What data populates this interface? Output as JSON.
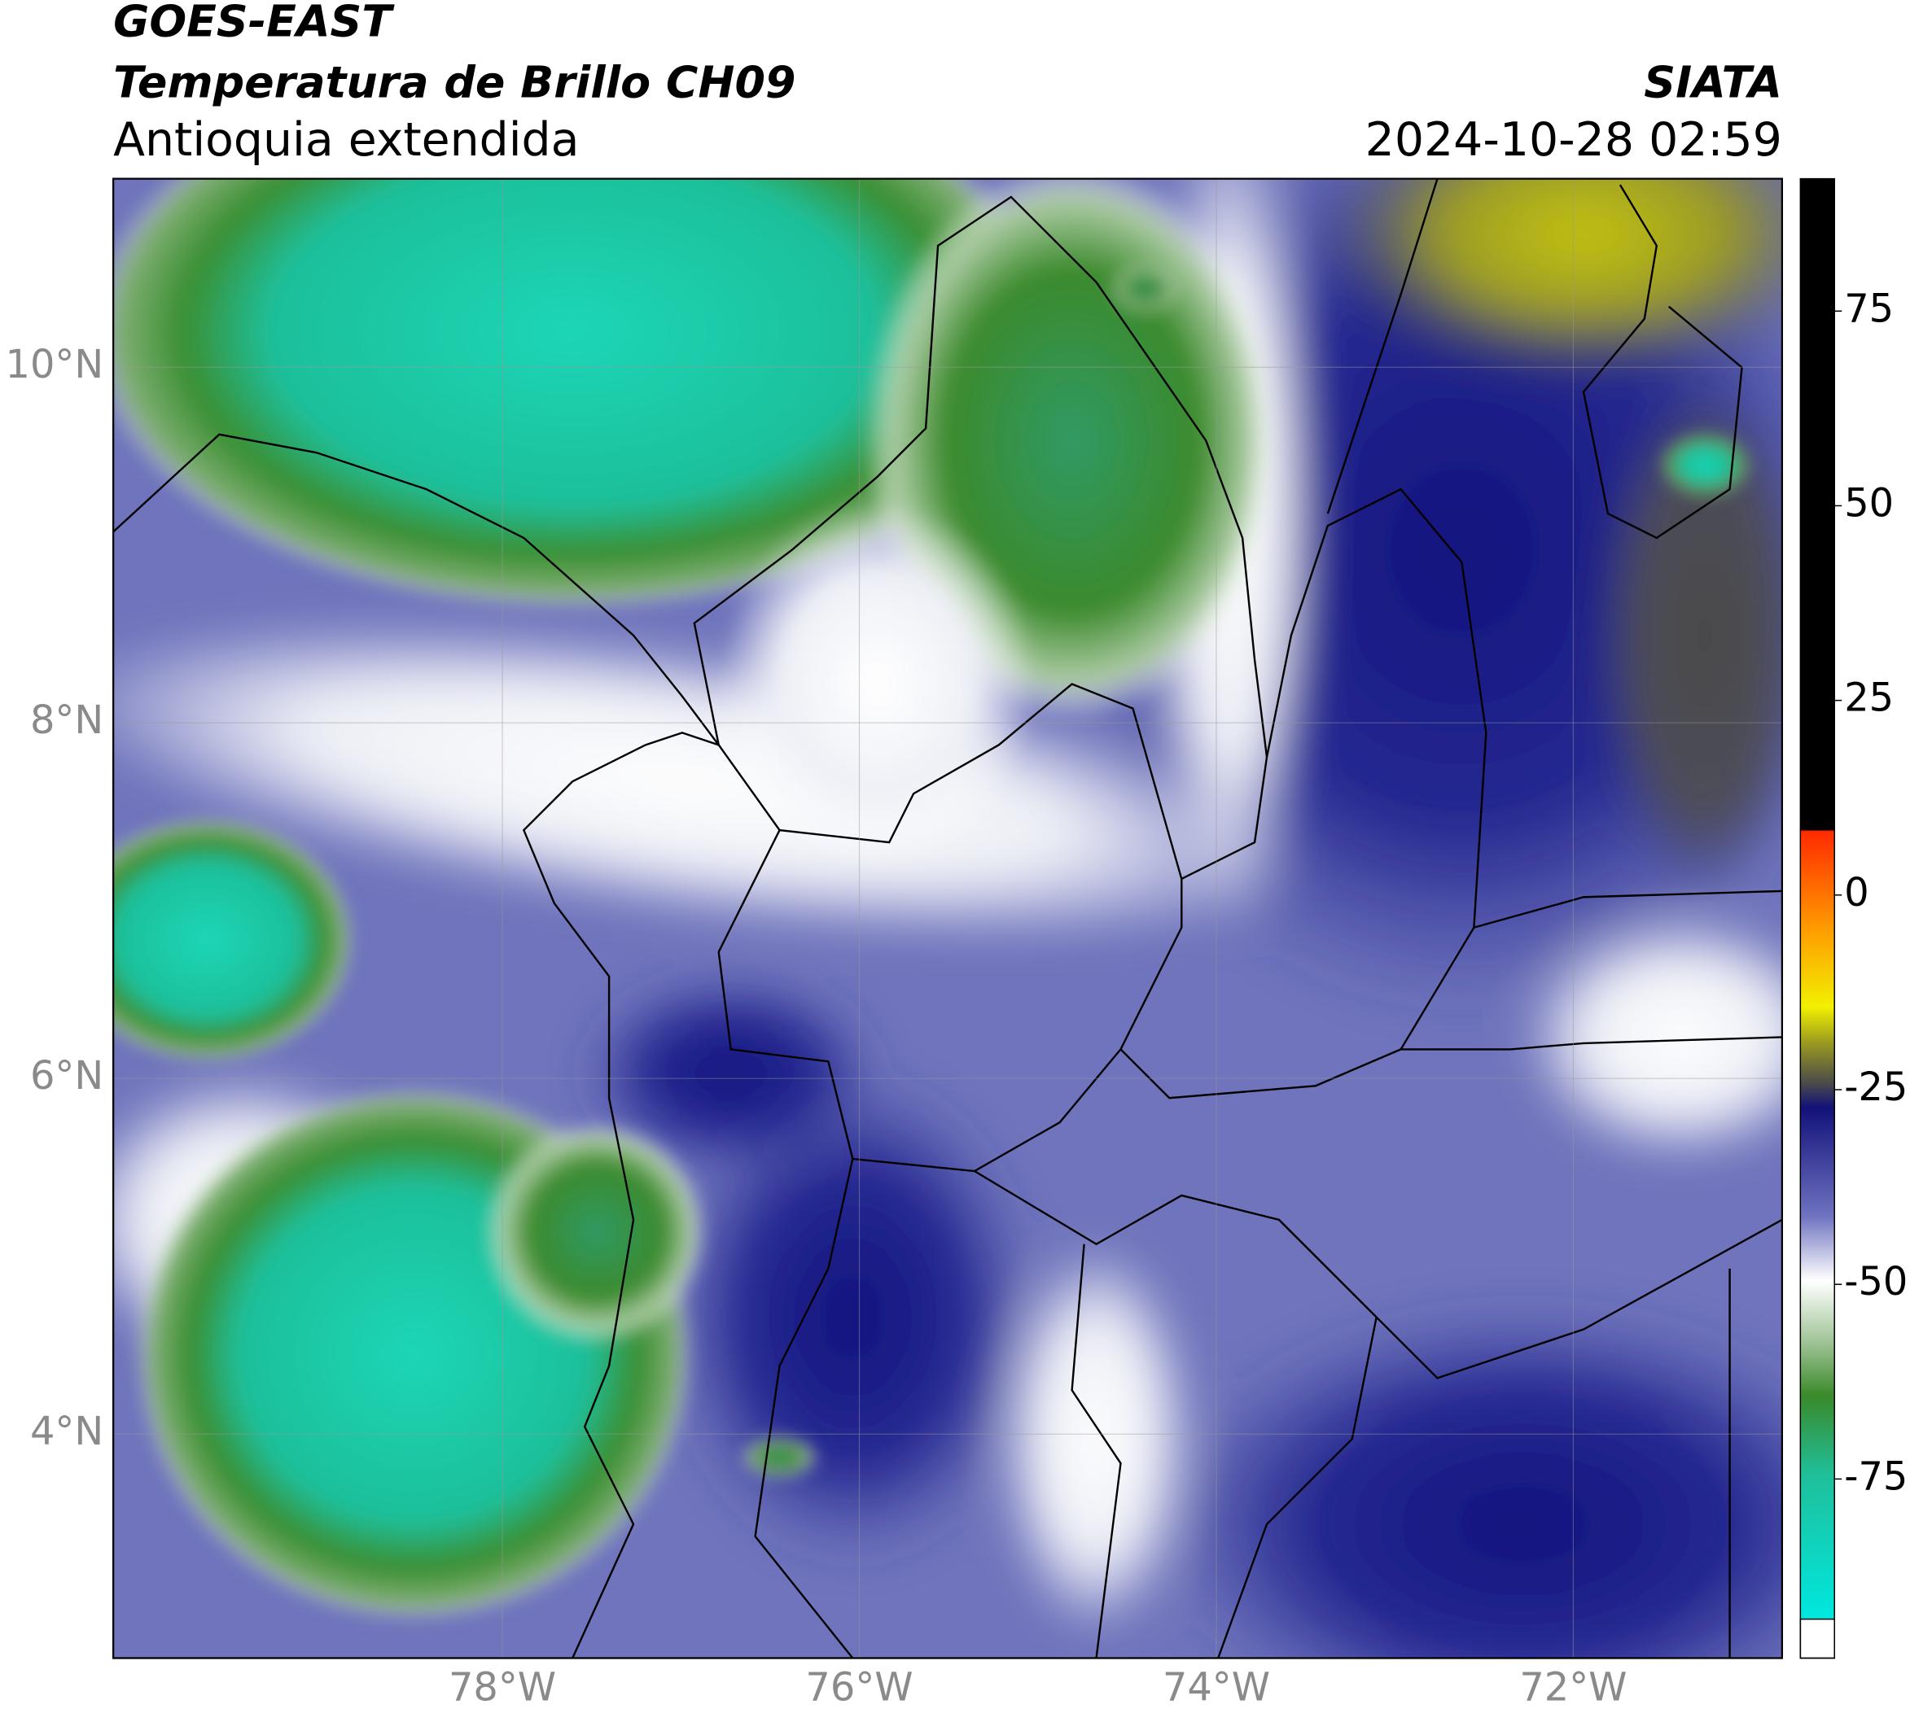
{
  "header": {
    "source": "GOES-EAST",
    "title": "Temperatura de Brillo CH09",
    "region": "Antioquia extendida",
    "organization": "SIATA",
    "datetime": "2024-10-28 02:59"
  },
  "map": {
    "xlim": [
      -80.18,
      -70.83
    ],
    "ylim": [
      2.74,
      11.06
    ],
    "xticks": [
      {
        "value": -78,
        "label": "78°W"
      },
      {
        "value": -76,
        "label": "76°W"
      },
      {
        "value": -74,
        "label": "74°W"
      },
      {
        "value": -72,
        "label": "72°W"
      }
    ],
    "yticks": [
      {
        "value": 4,
        "label": "4°N"
      },
      {
        "value": 6,
        "label": "6°N"
      },
      {
        "value": 8,
        "label": "8°N"
      },
      {
        "value": 10,
        "label": "10°N"
      }
    ],
    "grid": true
  },
  "colorbar": {
    "lim": [
      -93,
      92
    ],
    "ticks": [
      75,
      50,
      25,
      0,
      -25,
      -50,
      -75
    ]
  }
}
